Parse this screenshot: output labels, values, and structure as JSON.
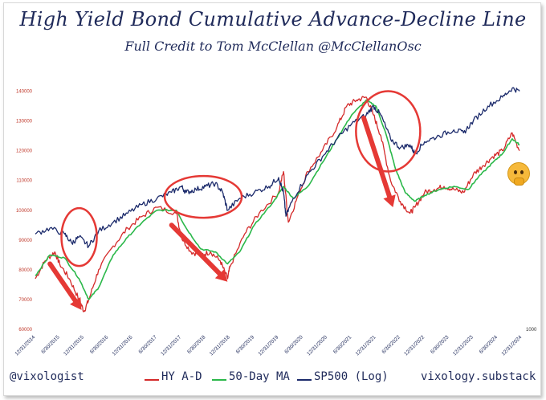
{
  "header": {
    "title": "High Yield Bond Cumulative Advance-Decline Line",
    "subtitle": "Full Credit to Tom McClellan @McClellanOsc"
  },
  "footer": {
    "handle": "@vixologist",
    "site": "vixology.substack"
  },
  "legend": {
    "hy": "HY A-D",
    "ma": "50-Day MA",
    "spx": "SP500 (Log)"
  },
  "colors": {
    "hy": "#d42a2a",
    "ma": "#2bb84a",
    "spx": "#1b2a6b",
    "annotation": "#e53935"
  },
  "emoji": "thinking-face",
  "chart_data": {
    "type": "line",
    "title": "High Yield Bond Cumulative Advance-Decline Line",
    "y_left_ticks": [
      "60000",
      "70000",
      "80000",
      "90000",
      "100000",
      "110000",
      "120000",
      "130000",
      "140000"
    ],
    "y_right_ticks": [
      "1000"
    ],
    "ylim": [
      60000,
      145000
    ],
    "x_ticks": [
      "12/31/2014",
      "6/30/2015",
      "12/31/2015",
      "6/30/2016",
      "12/31/2016",
      "6/30/2017",
      "12/31/2017",
      "6/30/2018",
      "12/31/2018",
      "6/30/2019",
      "12/31/2019",
      "6/30/2020",
      "12/31/2020",
      "6/30/2021",
      "12/31/2021",
      "6/30/2022",
      "12/31/2022",
      "6/30/2023",
      "12/31/2023",
      "6/30/2024",
      "12/31/2024"
    ],
    "series": [
      {
        "name": "HY A-D",
        "x": [
          2015.0,
          2015.2,
          2015.4,
          2015.5,
          2015.7,
          2015.9,
          2016.0,
          2016.1,
          2016.3,
          2016.6,
          2016.9,
          2017.2,
          2017.5,
          2017.9,
          2018.0,
          2018.2,
          2018.4,
          2018.6,
          2018.8,
          2018.95,
          2019.0,
          2019.3,
          2019.6,
          2020.0,
          2020.1,
          2020.2,
          2020.4,
          2020.6,
          2020.9,
          2021.2,
          2021.4,
          2021.6,
          2021.8,
          2021.95,
          2022.1,
          2022.3,
          2022.5,
          2022.7,
          2022.8,
          2023.0,
          2023.2,
          2023.4,
          2023.6,
          2023.8,
          2024.0,
          2024.2,
          2024.4,
          2024.6,
          2024.8,
          2024.95
        ],
        "values": [
          77000,
          83000,
          86000,
          82000,
          77000,
          70000,
          66000,
          70000,
          80000,
          88000,
          94000,
          98000,
          101000,
          99000,
          91000,
          86000,
          85000,
          86000,
          83000,
          77000,
          81000,
          92000,
          99000,
          106000,
          113000,
          96000,
          105000,
          113000,
          120000,
          128000,
          135000,
          137000,
          138000,
          132000,
          125000,
          110000,
          103000,
          99000,
          101000,
          106000,
          107000,
          108000,
          107000,
          106000,
          112000,
          115000,
          118000,
          120000,
          126000,
          120000
        ]
      },
      {
        "name": "50-Day MA",
        "x": [
          2015.0,
          2015.3,
          2015.6,
          2015.9,
          2016.1,
          2016.3,
          2016.6,
          2016.9,
          2017.2,
          2017.5,
          2017.9,
          2018.1,
          2018.4,
          2018.7,
          2018.95,
          2019.2,
          2019.5,
          2019.9,
          2020.1,
          2020.3,
          2020.6,
          2020.9,
          2021.2,
          2021.5,
          2021.8,
          2022.0,
          2022.2,
          2022.4,
          2022.6,
          2022.8,
          2023.0,
          2023.3,
          2023.6,
          2023.9,
          2024.1,
          2024.4,
          2024.6,
          2024.8,
          2024.95
        ],
        "values": [
          78000,
          85000,
          84000,
          77000,
          70000,
          74000,
          85000,
          91000,
          96000,
          100000,
          100000,
          94000,
          87000,
          86000,
          82000,
          86000,
          95000,
          103000,
          108000,
          104000,
          108000,
          116000,
          124000,
          132000,
          137000,
          135000,
          126000,
          114000,
          106000,
          103000,
          105000,
          107000,
          108000,
          107000,
          111000,
          116000,
          119000,
          124000,
          122000
        ]
      },
      {
        "name": "SP500 (Log)",
        "x": [
          2015.0,
          2015.3,
          2015.6,
          2015.75,
          2015.9,
          2016.1,
          2016.3,
          2016.6,
          2016.9,
          2017.2,
          2017.5,
          2017.8,
          2018.0,
          2018.1,
          2018.3,
          2018.5,
          2018.7,
          2018.85,
          2018.95,
          2019.2,
          2019.5,
          2019.8,
          2020.0,
          2020.1,
          2020.15,
          2020.3,
          2020.6,
          2020.9,
          2021.2,
          2021.5,
          2021.8,
          2021.95,
          2022.1,
          2022.3,
          2022.5,
          2022.7,
          2022.8,
          2023.0,
          2023.3,
          2023.6,
          2023.8,
          2024.0,
          2024.3,
          2024.6,
          2024.8,
          2024.95
        ],
        "values": [
          92000,
          94000,
          92000,
          89000,
          91000,
          88000,
          93000,
          96000,
          99000,
          102000,
          104000,
          106000,
          108000,
          106000,
          107000,
          108000,
          109000,
          106000,
          100000,
          104000,
          106000,
          108000,
          111000,
          106000,
          98000,
          104000,
          112000,
          118000,
          124000,
          129000,
          132000,
          135000,
          132000,
          124000,
          121000,
          122000,
          119000,
          123000,
          125000,
          127000,
          126000,
          130000,
          135000,
          138000,
          141000,
          140000
        ]
      }
    ],
    "annotations": [
      "circle",
      "circle",
      "circle",
      "arrow",
      "arrow",
      "arrow"
    ]
  }
}
